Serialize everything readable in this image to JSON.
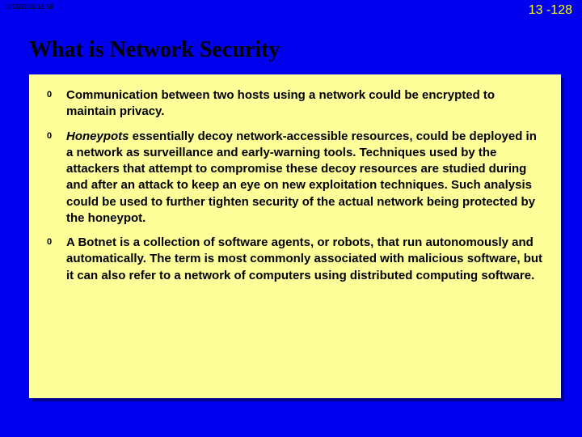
{
  "header": {
    "timestamp": "3/15/2016  16:59",
    "page_number": "13 -128"
  },
  "title": "What is Network Security",
  "background_color": "#0000ee",
  "content_box_color": "#ffff99",
  "page_number_color": "#ffff00",
  "text_color": "#000000",
  "bullets": {
    "marker": "0",
    "items": [
      {
        "text": "Communication between two hosts using a network could be encrypted to maintain privacy."
      },
      {
        "prefix_italic": "Honeypots",
        "text": "  essentially decoy network-accessible resources, could be deployed in a network as surveillance and early-warning tools. Techniques used by the attackers that attempt to compromise these decoy resources are studied during and after an attack to keep an eye on new exploitation techniques. Such analysis could be used to further tighten security of the actual network being protected by the honeypot."
      },
      {
        "text": "A Botnet is a collection of software agents, or robots, that run autonomously and automatically. The term is most commonly associated with malicious software, but it can also refer to a network of computers using distributed computing software."
      }
    ]
  }
}
